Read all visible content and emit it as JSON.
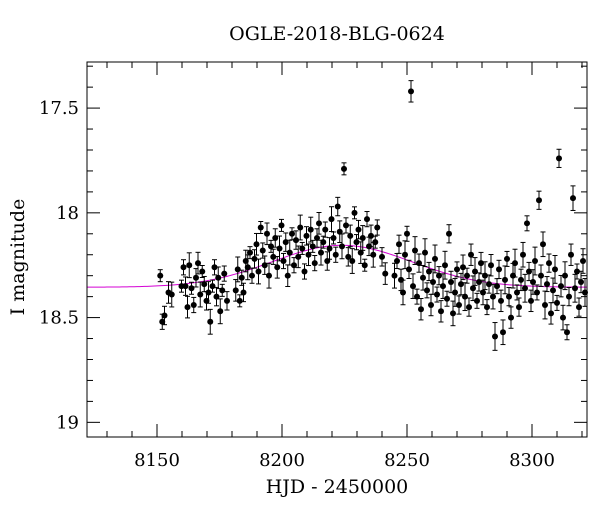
{
  "chart_data": {
    "type": "scatter",
    "title": "OGLE-2018-BLG-0624",
    "xlabel": "HJD - 2450000",
    "ylabel": "I magnitude",
    "xlim": [
      8122,
      8322
    ],
    "ylim": [
      19.07,
      17.28
    ],
    "y_inverted": true,
    "grid": false,
    "x_major_ticks": [
      8150,
      8200,
      8250,
      8300
    ],
    "y_major_ticks": [
      17.5,
      18,
      18.5,
      19
    ],
    "colors": {
      "points": "#000000",
      "model": "#d400d4"
    },
    "model_curve": {
      "baseline_mag": 18.355,
      "peak_mag": 18.155,
      "t0": 8224,
      "t_width": 28
    },
    "series": [
      {
        "values": [
          [
            8151.3,
            18.3
          ],
          [
            8152.1,
            18.52
          ],
          [
            8153.0,
            18.49
          ],
          [
            8154.6,
            18.38
          ],
          [
            8155.9,
            18.39
          ],
          [
            8159.8,
            18.35
          ],
          [
            8160.6,
            18.26
          ],
          [
            8161.4,
            18.35
          ],
          [
            8162.2,
            18.45
          ],
          [
            8162.9,
            18.25
          ],
          [
            8163.8,
            18.36
          ],
          [
            8164.7,
            18.44
          ],
          [
            8165.6,
            18.31
          ],
          [
            8166.4,
            18.24
          ],
          [
            8167.3,
            18.39
          ],
          [
            8168.1,
            18.28
          ],
          [
            8168.9,
            18.34
          ],
          [
            8169.8,
            18.42
          ],
          [
            8170.6,
            18.38
          ],
          [
            8171.3,
            18.52
          ],
          [
            8172.2,
            18.35
          ],
          [
            8173.0,
            18.26
          ],
          [
            8173.8,
            18.4
          ],
          [
            8174.5,
            18.31
          ],
          [
            8175.3,
            18.47
          ],
          [
            8176.1,
            18.37
          ],
          [
            8176.9,
            18.29
          ],
          [
            8178.0,
            18.42
          ],
          [
            8181.5,
            18.37
          ],
          [
            8182.3,
            18.27
          ],
          [
            8183.1,
            18.42
          ],
          [
            8183.9,
            18.31
          ],
          [
            8184.6,
            18.38
          ],
          [
            8185.5,
            18.23
          ],
          [
            8186.3,
            18.26
          ],
          [
            8187.2,
            18.19
          ],
          [
            8188.0,
            18.3
          ],
          [
            8189.0,
            18.22
          ],
          [
            8189.8,
            18.15
          ],
          [
            8190.6,
            18.28
          ],
          [
            8191.5,
            18.07
          ],
          [
            8192.3,
            18.18
          ],
          [
            8193.1,
            18.25
          ],
          [
            8194.0,
            18.1
          ],
          [
            8194.8,
            18.3
          ],
          [
            8195.6,
            18.16
          ],
          [
            8196.5,
            18.21
          ],
          [
            8197.3,
            18.12
          ],
          [
            8198.1,
            18.26
          ],
          [
            8199.0,
            18.17
          ],
          [
            8199.8,
            18.06
          ],
          [
            8200.6,
            18.23
          ],
          [
            8201.5,
            18.14
          ],
          [
            8202.3,
            18.3
          ],
          [
            8203.1,
            18.19
          ],
          [
            8204.0,
            18.1
          ],
          [
            8204.8,
            18.25
          ],
          [
            8205.6,
            18.13
          ],
          [
            8206.5,
            18.21
          ],
          [
            8207.3,
            18.07
          ],
          [
            8208.1,
            18.17
          ],
          [
            8209.0,
            18.28
          ],
          [
            8209.8,
            18.11
          ],
          [
            8210.6,
            18.2
          ],
          [
            8211.5,
            18.08
          ],
          [
            8212.3,
            18.16
          ],
          [
            8213.1,
            18.24
          ],
          [
            8214.0,
            18.12
          ],
          [
            8214.8,
            18.05
          ],
          [
            8215.6,
            18.19
          ],
          [
            8216.5,
            18.14
          ],
          [
            8217.3,
            18.08
          ],
          [
            8218.1,
            18.23
          ],
          [
            8219.0,
            18.17
          ],
          [
            8219.8,
            18.03
          ],
          [
            8220.6,
            18.12
          ],
          [
            8221.5,
            18.2
          ],
          [
            8222.3,
            17.97
          ],
          [
            8223.1,
            18.09
          ],
          [
            8224.0,
            18.16
          ],
          [
            8224.8,
            17.79
          ],
          [
            8225.6,
            18.06
          ],
          [
            8226.5,
            18.21
          ],
          [
            8227.3,
            18.11
          ],
          [
            8228.1,
            18.23
          ],
          [
            8229.0,
            18.0
          ],
          [
            8229.8,
            18.14
          ],
          [
            8230.6,
            18.08
          ],
          [
            8231.5,
            18.19
          ],
          [
            8232.3,
            18.12
          ],
          [
            8233.1,
            18.25
          ],
          [
            8234.0,
            18.03
          ],
          [
            8234.8,
            18.16
          ],
          [
            8235.6,
            18.11
          ],
          [
            8236.5,
            18.2
          ],
          [
            8237.3,
            18.14
          ],
          [
            8238.1,
            18.07
          ],
          [
            8240.0,
            18.21
          ],
          [
            8241.3,
            18.29
          ],
          [
            8245.0,
            18.3
          ],
          [
            8246.0,
            18.23
          ],
          [
            8246.8,
            18.15
          ],
          [
            8247.6,
            18.32
          ],
          [
            8248.4,
            18.38
          ],
          [
            8249.2,
            18.2
          ],
          [
            8250.0,
            18.1
          ],
          [
            8250.8,
            18.27
          ],
          [
            8251.6,
            17.42
          ],
          [
            8252.4,
            18.35
          ],
          [
            8253.2,
            18.18
          ],
          [
            8254.0,
            18.4
          ],
          [
            8254.8,
            18.24
          ],
          [
            8255.6,
            18.46
          ],
          [
            8256.4,
            18.31
          ],
          [
            8257.2,
            18.19
          ],
          [
            8258.0,
            18.37
          ],
          [
            8258.8,
            18.28
          ],
          [
            8259.6,
            18.44
          ],
          [
            8260.4,
            18.33
          ],
          [
            8261.2,
            18.22
          ],
          [
            8262.0,
            18.39
          ],
          [
            8262.8,
            18.3
          ],
          [
            8263.6,
            18.47
          ],
          [
            8264.4,
            18.35
          ],
          [
            8265.2,
            18.25
          ],
          [
            8266.0,
            18.41
          ],
          [
            8266.8,
            18.1
          ],
          [
            8267.6,
            18.33
          ],
          [
            8268.4,
            18.48
          ],
          [
            8269.2,
            18.38
          ],
          [
            8270.0,
            18.27
          ],
          [
            8270.8,
            18.44
          ],
          [
            8271.6,
            18.34
          ],
          [
            8272.4,
            18.26
          ],
          [
            8273.2,
            18.4
          ],
          [
            8274.0,
            18.3
          ],
          [
            8274.8,
            18.45
          ],
          [
            8275.6,
            18.2
          ],
          [
            8276.4,
            18.36
          ],
          [
            8277.2,
            18.28
          ],
          [
            8278.0,
            18.42
          ],
          [
            8278.8,
            18.33
          ],
          [
            8279.6,
            18.24
          ],
          [
            8280.4,
            18.38
          ],
          [
            8281.2,
            18.3
          ],
          [
            8282.0,
            18.45
          ],
          [
            8282.8,
            18.34
          ],
          [
            8283.6,
            18.25
          ],
          [
            8284.4,
            18.4
          ],
          [
            8285.2,
            18.59
          ],
          [
            8286.0,
            18.35
          ],
          [
            8286.8,
            18.27
          ],
          [
            8287.6,
            18.42
          ],
          [
            8288.4,
            18.57
          ],
          [
            8289.2,
            18.32
          ],
          [
            8290.0,
            18.22
          ],
          [
            8290.8,
            18.4
          ],
          [
            8291.6,
            18.5
          ],
          [
            8292.4,
            18.3
          ],
          [
            8293.2,
            18.24
          ],
          [
            8294.0,
            18.38
          ],
          [
            8294.8,
            18.45
          ],
          [
            8295.6,
            18.32
          ],
          [
            8296.4,
            18.2
          ],
          [
            8297.2,
            18.36
          ],
          [
            8298.0,
            18.05
          ],
          [
            8298.8,
            18.28
          ],
          [
            8299.6,
            18.42
          ],
          [
            8300.4,
            18.33
          ],
          [
            8301.2,
            18.23
          ],
          [
            8302.0,
            18.38
          ],
          [
            8302.8,
            17.94
          ],
          [
            8303.6,
            18.3
          ],
          [
            8304.4,
            18.15
          ],
          [
            8305.2,
            18.44
          ],
          [
            8306.0,
            18.34
          ],
          [
            8306.8,
            18.24
          ],
          [
            8307.6,
            18.48
          ],
          [
            8308.4,
            18.37
          ],
          [
            8309.2,
            18.27
          ],
          [
            8310.0,
            18.43
          ],
          [
            8310.8,
            17.74
          ],
          [
            8311.6,
            18.35
          ],
          [
            8312.4,
            18.5
          ],
          [
            8313.2,
            18.3
          ],
          [
            8314.0,
            18.57
          ],
          [
            8314.8,
            18.4
          ],
          [
            8315.6,
            18.2
          ],
          [
            8316.4,
            17.93
          ],
          [
            8317.2,
            18.36
          ],
          [
            8318.0,
            18.28
          ],
          [
            8318.8,
            18.45
          ],
          [
            8319.6,
            18.33
          ],
          [
            8320.4,
            18.23
          ],
          [
            8321.2,
            18.38
          ]
        ]
      }
    ]
  }
}
